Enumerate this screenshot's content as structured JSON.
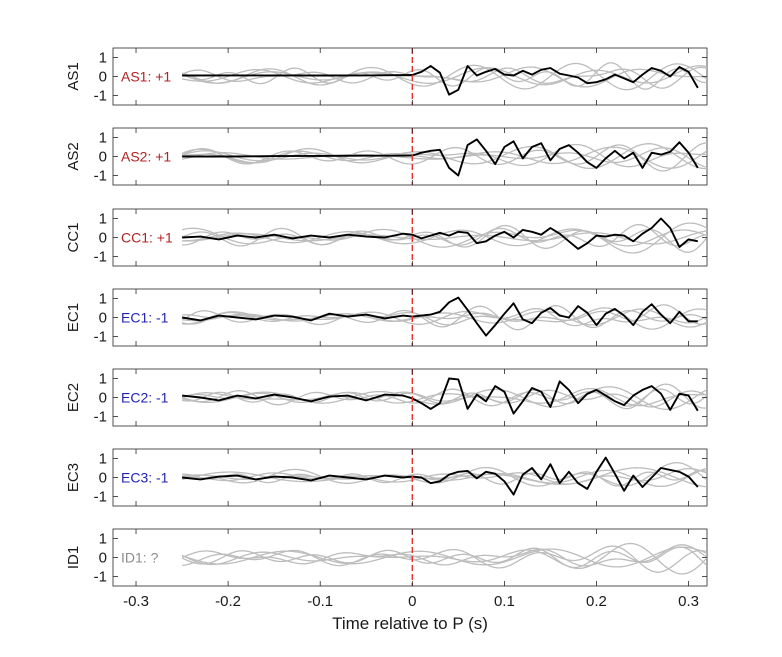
{
  "chart_data": {
    "type": "line",
    "xlabel": "Time relative to P (s)",
    "xlim": [
      -0.325,
      0.32
    ],
    "x_ticks": [
      -0.3,
      -0.2,
      -0.1,
      0,
      0.1,
      0.2,
      0.3
    ],
    "x_tick_labels": [
      "-0.3",
      "-0.2",
      "-0.1",
      "0",
      "0.1",
      "0.2",
      "0.3"
    ],
    "ylim": [
      -1.5,
      1.5
    ],
    "y_ticks": [
      -1,
      0,
      1
    ],
    "y_tick_labels": [
      "-1",
      "0",
      "1"
    ],
    "marker_x": 0,
    "colors": {
      "trace": "#000000",
      "background": "#bdbdbd",
      "marker": "#e8322e",
      "positive": "#b22222",
      "negative": "#1f1fb5",
      "unknown": "#8c8c8c"
    },
    "panels": [
      {
        "ylabel": "AS1",
        "label": "AS1: +1",
        "label_color": "#b22222",
        "x": [
          -0.25,
          -0.2,
          -0.15,
          -0.1,
          -0.05,
          0,
          0.01,
          0.02,
          0.03,
          0.04,
          0.05,
          0.06,
          0.07,
          0.08,
          0.09,
          0.1,
          0.11,
          0.12,
          0.13,
          0.14,
          0.15,
          0.16,
          0.17,
          0.18,
          0.19,
          0.2,
          0.21,
          0.22,
          0.23,
          0.24,
          0.25,
          0.26,
          0.27,
          0.28,
          0.29,
          0.3,
          0.31
        ],
        "y": [
          0.05,
          0.06,
          0.06,
          0.05,
          0.06,
          0.08,
          0.25,
          0.55,
          0.2,
          -0.95,
          -0.7,
          0.55,
          0.05,
          0.25,
          0.4,
          0.1,
          0.05,
          0.3,
          0.1,
          0.35,
          0.45,
          0.15,
          0.05,
          -0.05,
          -0.35,
          -0.3,
          -0.15,
          0.1,
          -0.1,
          -0.3,
          0.1,
          0.45,
          0.3,
          0.0,
          0.5,
          0.25,
          -0.6
        ]
      },
      {
        "ylabel": "AS2",
        "label": "AS2: +1",
        "label_color": "#b22222",
        "x": [
          -0.25,
          -0.2,
          -0.15,
          -0.1,
          -0.05,
          0,
          0.01,
          0.02,
          0.03,
          0.04,
          0.05,
          0.06,
          0.07,
          0.08,
          0.09,
          0.1,
          0.11,
          0.12,
          0.13,
          0.14,
          0.15,
          0.16,
          0.17,
          0.18,
          0.19,
          0.2,
          0.21,
          0.22,
          0.23,
          0.24,
          0.25,
          0.26,
          0.27,
          0.28,
          0.29,
          0.3,
          0.31
        ],
        "y": [
          0.0,
          0.0,
          0.02,
          0.03,
          0.04,
          0.05,
          0.2,
          0.3,
          0.35,
          -0.6,
          -1.0,
          0.6,
          0.9,
          0.3,
          -0.4,
          0.5,
          0.8,
          -0.1,
          0.5,
          0.7,
          -0.2,
          0.4,
          0.6,
          0.2,
          -0.3,
          -0.6,
          -0.1,
          0.3,
          -0.1,
          0.2,
          -0.6,
          0.2,
          0.1,
          0.25,
          0.75,
          0.2,
          -0.6
        ]
      },
      {
        "ylabel": "CC1",
        "label": "CC1: +1",
        "label_color": "#b22222",
        "x": [
          -0.25,
          -0.23,
          -0.21,
          -0.19,
          -0.17,
          -0.15,
          -0.13,
          -0.11,
          -0.09,
          -0.07,
          -0.05,
          -0.03,
          -0.01,
          0,
          0.01,
          0.02,
          0.03,
          0.04,
          0.05,
          0.06,
          0.07,
          0.08,
          0.09,
          0.1,
          0.11,
          0.12,
          0.13,
          0.14,
          0.15,
          0.16,
          0.17,
          0.18,
          0.19,
          0.2,
          0.21,
          0.22,
          0.23,
          0.24,
          0.25,
          0.26,
          0.27,
          0.28,
          0.29,
          0.3,
          0.31
        ],
        "y": [
          0.0,
          0.05,
          -0.1,
          0.1,
          0.0,
          0.15,
          -0.05,
          0.1,
          0.0,
          0.15,
          0.05,
          0.0,
          0.2,
          0.15,
          -0.05,
          0.1,
          0.25,
          0.1,
          0.3,
          0.25,
          -0.3,
          -0.2,
          0.1,
          0.3,
          0.0,
          0.4,
          0.3,
          0.15,
          0.5,
          0.2,
          -0.2,
          -0.6,
          -0.3,
          0.1,
          0.05,
          0.15,
          0.1,
          -0.2,
          0.2,
          0.5,
          1.0,
          0.5,
          -0.5,
          -0.1,
          -0.2
        ]
      },
      {
        "ylabel": "EC1",
        "label": "EC1: -1",
        "label_color": "#1f1fb5",
        "x": [
          -0.25,
          -0.23,
          -0.21,
          -0.19,
          -0.17,
          -0.15,
          -0.13,
          -0.11,
          -0.09,
          -0.07,
          -0.05,
          -0.03,
          -0.01,
          0,
          0.01,
          0.02,
          0.03,
          0.04,
          0.05,
          0.06,
          0.07,
          0.08,
          0.09,
          0.1,
          0.11,
          0.12,
          0.13,
          0.14,
          0.15,
          0.16,
          0.17,
          0.18,
          0.19,
          0.2,
          0.21,
          0.22,
          0.23,
          0.24,
          0.25,
          0.26,
          0.27,
          0.28,
          0.29,
          0.3,
          0.31
        ],
        "y": [
          0.0,
          -0.15,
          0.1,
          0.0,
          -0.1,
          0.1,
          0.05,
          -0.15,
          0.2,
          0.05,
          0.15,
          -0.05,
          0.1,
          0.05,
          0.1,
          0.15,
          0.3,
          0.8,
          1.05,
          0.4,
          -0.3,
          -0.95,
          -0.4,
          0.2,
          0.75,
          -0.1,
          -0.3,
          0.25,
          0.5,
          0.1,
          0.0,
          0.6,
          0.25,
          -0.4,
          0.2,
          0.45,
          0.1,
          -0.4,
          0.3,
          0.7,
          0.15,
          -0.3,
          0.3,
          -0.2,
          -0.2
        ]
      },
      {
        "ylabel": "EC2",
        "label": "EC2: -1",
        "label_color": "#1f1fb5",
        "x": [
          -0.25,
          -0.23,
          -0.21,
          -0.19,
          -0.17,
          -0.15,
          -0.13,
          -0.11,
          -0.09,
          -0.07,
          -0.05,
          -0.03,
          -0.01,
          0,
          0.01,
          0.02,
          0.03,
          0.04,
          0.05,
          0.06,
          0.07,
          0.08,
          0.09,
          0.1,
          0.11,
          0.12,
          0.13,
          0.14,
          0.15,
          0.16,
          0.17,
          0.18,
          0.19,
          0.2,
          0.21,
          0.22,
          0.23,
          0.24,
          0.25,
          0.26,
          0.27,
          0.28,
          0.29,
          0.3,
          0.31
        ],
        "y": [
          0.1,
          0.0,
          -0.15,
          0.1,
          -0.05,
          0.15,
          0.0,
          -0.2,
          0.05,
          0.1,
          -0.15,
          0.15,
          0.1,
          -0.05,
          -0.3,
          -0.6,
          -0.3,
          1.0,
          0.95,
          -0.6,
          0.15,
          -0.2,
          0.6,
          0.3,
          -0.85,
          -0.2,
          0.5,
          0.3,
          -0.5,
          0.85,
          0.4,
          -0.3,
          0.2,
          0.4,
          0.1,
          -0.2,
          -0.4,
          0.1,
          0.4,
          0.6,
          0.2,
          -0.65,
          0.2,
          0.1,
          -0.7
        ]
      },
      {
        "ylabel": "EC3",
        "label": "EC3: -1",
        "label_color": "#1f1fb5",
        "x": [
          -0.25,
          -0.23,
          -0.21,
          -0.19,
          -0.17,
          -0.15,
          -0.13,
          -0.11,
          -0.09,
          -0.07,
          -0.05,
          -0.03,
          -0.01,
          0,
          0.01,
          0.02,
          0.03,
          0.04,
          0.05,
          0.06,
          0.07,
          0.08,
          0.09,
          0.1,
          0.11,
          0.12,
          0.13,
          0.14,
          0.15,
          0.16,
          0.17,
          0.18,
          0.19,
          0.2,
          0.21,
          0.22,
          0.23,
          0.24,
          0.25,
          0.26,
          0.27,
          0.28,
          0.29,
          0.3,
          0.31
        ],
        "y": [
          0.0,
          -0.1,
          0.05,
          0.1,
          -0.1,
          0.05,
          0.0,
          -0.15,
          0.1,
          0.0,
          -0.1,
          0.1,
          0.0,
          0.05,
          0.0,
          -0.3,
          -0.2,
          0.15,
          0.3,
          0.35,
          -0.05,
          0.3,
          0.2,
          -0.2,
          -0.9,
          0.15,
          0.5,
          -0.1,
          0.7,
          -0.3,
          0.3,
          -0.3,
          -0.6,
          0.3,
          1.05,
          0.2,
          -0.7,
          0.1,
          -0.5,
          0.0,
          0.5,
          0.4,
          0.3,
          0.05,
          -0.5
        ]
      },
      {
        "ylabel": "ID1",
        "label": "ID1: ?",
        "label_color": "#8c8c8c",
        "x": [],
        "y": []
      }
    ]
  }
}
